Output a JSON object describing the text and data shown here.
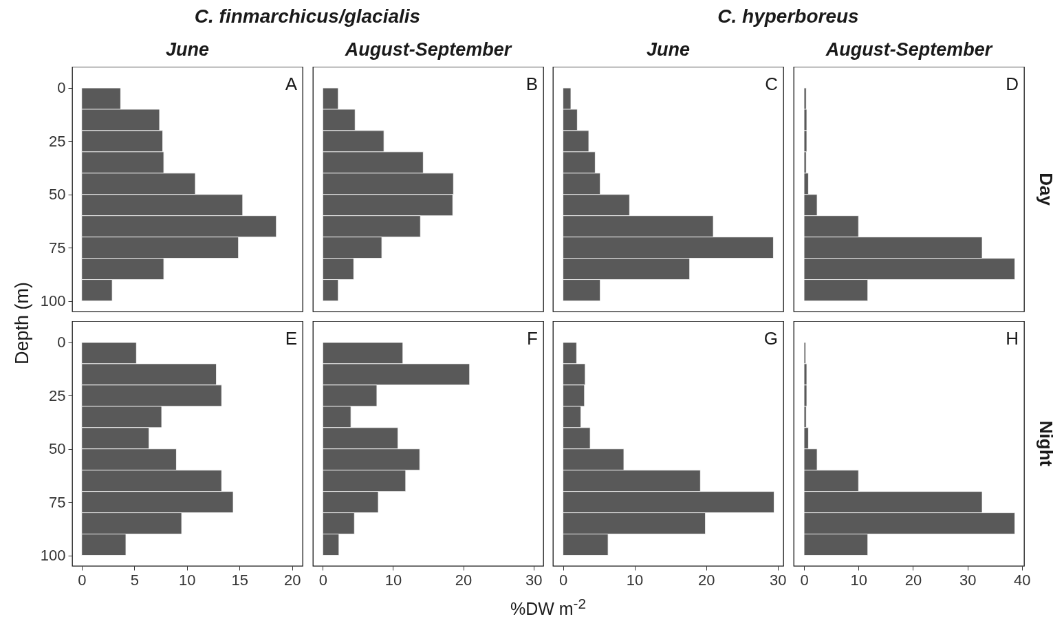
{
  "chart_data": [
    {
      "type": "histogram",
      "orientation": "horizontal",
      "title": "C. finmarchicus/glacialis",
      "subtitle": "June",
      "ylabel": "Depth (m)",
      "bins": [
        0,
        10,
        20,
        30,
        40,
        50,
        60,
        70,
        80,
        90,
        100
      ],
      "values": [
        3.7,
        7.4,
        7.7,
        7.8,
        10.8,
        15.3,
        18.5,
        14.9,
        7.8,
        2.9
      ],
      "color": "#595959",
      "xlim": [
        -0.9,
        21
      ],
      "xticks": [
        0,
        5,
        10,
        15,
        20
      ],
      "ylim": [
        105,
        -10
      ],
      "yticks": [
        0,
        25,
        50,
        75,
        100
      ],
      "tick_labels": "y",
      "annotations": [
        "A"
      ]
    },
    {
      "type": "histogram",
      "orientation": "horizontal",
      "subtitle": "August-September",
      "bins": [
        0,
        10,
        20,
        30,
        40,
        50,
        60,
        70,
        80,
        90,
        100
      ],
      "values": [
        2.2,
        4.6,
        8.7,
        14.3,
        18.6,
        18.5,
        13.9,
        8.4,
        4.4,
        2.2
      ],
      "color": "#595959",
      "xlim": [
        -1.4,
        31.4
      ],
      "xticks": [
        0,
        10,
        20,
        30
      ],
      "ylim": [
        105,
        -10
      ],
      "yticks": [
        0,
        25,
        50,
        75,
        100
      ],
      "tick_labels": false,
      "annotations": [
        "B"
      ]
    },
    {
      "type": "histogram",
      "orientation": "horizontal",
      "title": "C. hyperboreus",
      "subtitle": "June",
      "bins": [
        0,
        10,
        20,
        30,
        40,
        50,
        60,
        70,
        80,
        90,
        100
      ],
      "values": [
        1.1,
        2.0,
        3.6,
        4.5,
        5.2,
        9.3,
        21.0,
        29.4,
        17.7,
        5.2
      ],
      "color": "#595959",
      "xlim": [
        -1.4,
        30.8
      ],
      "xticks": [
        0,
        10,
        20,
        30
      ],
      "ylim": [
        105,
        -10
      ],
      "yticks": [
        0,
        25,
        50,
        75,
        100
      ],
      "tick_labels": false,
      "annotations": [
        "C"
      ]
    },
    {
      "type": "histogram",
      "orientation": "horizontal",
      "subtitle": "August-September",
      "bins": [
        0,
        10,
        20,
        30,
        40,
        50,
        60,
        70,
        80,
        90,
        100
      ],
      "values": [
        0.4,
        0.5,
        0.5,
        0.4,
        0.8,
        2.4,
        10.0,
        32.7,
        38.7,
        11.7
      ],
      "color": "#595959",
      "xlim": [
        -1.9,
        40.4
      ],
      "xticks": [
        0,
        10,
        20,
        30,
        40
      ],
      "ylim": [
        105,
        -10
      ],
      "yticks": [
        0,
        25,
        50,
        75,
        100
      ],
      "tick_labels": false,
      "annotations": [
        "D",
        "Day"
      ]
    },
    {
      "type": "histogram",
      "orientation": "horizontal",
      "bins": [
        0,
        10,
        20,
        30,
        40,
        50,
        60,
        70,
        80,
        90,
        100
      ],
      "values": [
        5.2,
        12.8,
        13.3,
        7.6,
        6.4,
        9.0,
        13.3,
        14.4,
        9.5,
        4.2
      ],
      "color": "#595959",
      "xlim": [
        -0.9,
        21
      ],
      "xticks": [
        0,
        5,
        10,
        15,
        20
      ],
      "ylim": [
        105,
        -10
      ],
      "yticks": [
        0,
        25,
        50,
        75,
        100
      ],
      "annotations": [
        "E"
      ]
    },
    {
      "type": "histogram",
      "orientation": "horizontal",
      "bins": [
        0,
        10,
        20,
        30,
        40,
        50,
        60,
        70,
        80,
        90,
        100
      ],
      "values": [
        11.4,
        20.9,
        7.7,
        4.0,
        10.7,
        13.8,
        11.8,
        7.9,
        4.5,
        2.3
      ],
      "xlabel": "%DW m$^{-2}$",
      "color": "#595959",
      "xlim": [
        -1.4,
        31.4
      ],
      "xticks": [
        0,
        10,
        20,
        30
      ],
      "ylim": [
        105,
        -10
      ],
      "yticks": [
        0,
        25,
        50,
        75,
        100
      ],
      "tick_labels": "x",
      "annotations": [
        "F"
      ]
    },
    {
      "type": "histogram",
      "orientation": "horizontal",
      "bins": [
        0,
        10,
        20,
        30,
        40,
        50,
        60,
        70,
        80,
        90,
        100
      ],
      "values": [
        1.9,
        3.1,
        3.0,
        2.5,
        3.8,
        8.5,
        19.2,
        29.5,
        19.9,
        6.3
      ],
      "color": "#595959",
      "xlim": [
        -1.4,
        30.8
      ],
      "xticks": [
        0,
        10,
        20,
        30
      ],
      "ylim": [
        105,
        -10
      ],
      "yticks": [
        0,
        25,
        50,
        75,
        100
      ],
      "tick_labels": "x",
      "annotations": [
        "G"
      ]
    },
    {
      "type": "histogram",
      "orientation": "horizontal",
      "bins": [
        0,
        10,
        20,
        30,
        40,
        50,
        60,
        70,
        80,
        90,
        100
      ],
      "values": [
        0.3,
        0.5,
        0.5,
        0.4,
        0.8,
        2.4,
        10.0,
        32.7,
        38.7,
        11.7
      ],
      "color": "#595959",
      "xlim": [
        -1.9,
        40.4
      ],
      "xticks": [
        0,
        10,
        20,
        30,
        40
      ],
      "ylim": [
        105,
        -10
      ],
      "yticks": [
        0,
        25,
        50,
        75,
        100
      ],
      "tick_labels": "x",
      "annotations": [
        "H",
        "Night"
      ]
    }
  ]
}
